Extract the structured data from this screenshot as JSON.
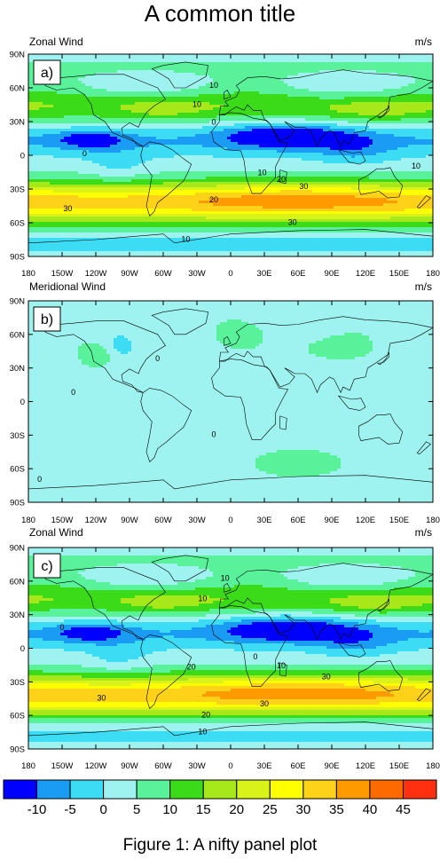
{
  "title": "A common title",
  "caption": "Figure 1: A nifty panel plot",
  "chart_data": [
    {
      "type": "heatmap",
      "panel_letter": "a)",
      "title": "Zonal Wind",
      "units": "m/s",
      "variable": "zonal",
      "x_ticks": [
        "180",
        "150W",
        "120W",
        "90W",
        "60W",
        "30W",
        "0",
        "30E",
        "60E",
        "90E",
        "120E",
        "150E",
        "180"
      ],
      "y_ticks": [
        "90N",
        "60N",
        "30N",
        "0",
        "30S",
        "60S",
        "90S"
      ],
      "xlim": [
        -180,
        180
      ],
      "ylim": [
        -90,
        90
      ],
      "contour_labels": [
        {
          "text": "10",
          "lon": -15,
          "lat": 62
        },
        {
          "text": "10",
          "lon": -30,
          "lat": 45
        },
        {
          "text": "0",
          "lon": -15,
          "lat": 29
        },
        {
          "text": "0",
          "lon": -130,
          "lat": 1
        },
        {
          "text": "10",
          "lon": 28,
          "lat": -16
        },
        {
          "text": "20",
          "lon": 45,
          "lat": -22
        },
        {
          "text": "30",
          "lon": 65,
          "lat": -28
        },
        {
          "text": "10",
          "lon": 165,
          "lat": -10
        },
        {
          "text": "30",
          "lon": -145,
          "lat": -48
        },
        {
          "text": "20",
          "lon": -15,
          "lat": -40
        },
        {
          "text": "30",
          "lon": 55,
          "lat": -60
        },
        {
          "text": "10",
          "lon": -40,
          "lat": -75
        }
      ]
    },
    {
      "type": "heatmap",
      "panel_letter": "b)",
      "title": "Meridional Wind",
      "units": "m/s",
      "variable": "meridional",
      "x_ticks": [
        "180",
        "150W",
        "120W",
        "90W",
        "60W",
        "30W",
        "0",
        "30E",
        "60E",
        "90E",
        "120E",
        "150E",
        "180"
      ],
      "y_ticks": [
        "90N",
        "60N",
        "30N",
        "0",
        "30S",
        "60S",
        "90S"
      ],
      "xlim": [
        -180,
        180
      ],
      "ylim": [
        -90,
        90
      ],
      "contour_labels": [
        {
          "text": "0",
          "lon": -65,
          "lat": 38
        },
        {
          "text": "0",
          "lon": -140,
          "lat": 8
        },
        {
          "text": "0",
          "lon": -15,
          "lat": -30
        },
        {
          "text": "0",
          "lon": -170,
          "lat": -70
        }
      ]
    },
    {
      "type": "heatmap",
      "panel_letter": "c)",
      "title": "Zonal Wind",
      "units": "m/s",
      "variable": "zonal",
      "x_ticks": [
        "180",
        "150W",
        "120W",
        "90W",
        "60W",
        "30W",
        "0",
        "30E",
        "60E",
        "90E",
        "120E",
        "150E",
        "180"
      ],
      "y_ticks": [
        "90N",
        "60N",
        "30N",
        "0",
        "30S",
        "60S",
        "90S"
      ],
      "xlim": [
        -180,
        180
      ],
      "ylim": [
        -90,
        90
      ],
      "contour_labels": [
        {
          "text": "10",
          "lon": -5,
          "lat": 62
        },
        {
          "text": "10",
          "lon": -25,
          "lat": 44
        },
        {
          "text": "0",
          "lon": -150,
          "lat": 18
        },
        {
          "text": "0",
          "lon": 22,
          "lat": -8
        },
        {
          "text": "10",
          "lon": 45,
          "lat": -16
        },
        {
          "text": "20",
          "lon": -35,
          "lat": -17
        },
        {
          "text": "30",
          "lon": 85,
          "lat": -26
        },
        {
          "text": "30",
          "lon": -115,
          "lat": -45
        },
        {
          "text": "30",
          "lon": 30,
          "lat": -50
        },
        {
          "text": "20",
          "lon": -22,
          "lat": -60
        },
        {
          "text": "10",
          "lon": -25,
          "lat": -75
        }
      ]
    }
  ],
  "colorbar": {
    "labels": [
      "-10",
      "-5",
      "0",
      "5",
      "10",
      "15",
      "20",
      "25",
      "30",
      "35",
      "40",
      "45"
    ],
    "colors": [
      "#0000ff",
      "#1a9cf5",
      "#3ddcf5",
      "#9ef2ef",
      "#59f29b",
      "#3cdb19",
      "#a6e81a",
      "#d9f21a",
      "#ffff00",
      "#ffd21a",
      "#ff9a00",
      "#ff6a00",
      "#ff3010"
    ],
    "levels": [
      -10,
      -5,
      0,
      5,
      10,
      15,
      20,
      25,
      30,
      35,
      40,
      45
    ]
  }
}
